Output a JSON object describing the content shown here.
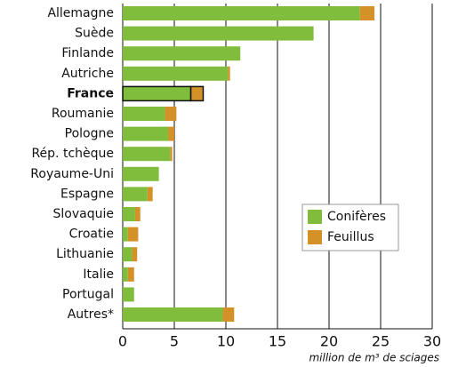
{
  "chart_data": {
    "type": "stacked-bar-horizontal",
    "categories": [
      "Allemagne",
      "Suède",
      "Finlande",
      "Autriche",
      "France",
      "Roumanie",
      "Pologne",
      "Rép. tchèque",
      "Royaume-Uni",
      "Espagne",
      "Slovaquie",
      "Croatie",
      "Lithuanie",
      "Italie",
      "Portugal",
      "Autres*"
    ],
    "series": [
      {
        "name": "Conifères",
        "color": "#80bd3c",
        "values": [
          23.0,
          18.5,
          11.4,
          10.2,
          6.6,
          4.1,
          4.4,
          4.6,
          3.5,
          2.4,
          1.2,
          0.5,
          0.9,
          0.5,
          1.1,
          9.7
        ]
      },
      {
        "name": "Feuillus",
        "color": "#d39128",
        "values": [
          1.4,
          0,
          0,
          0.2,
          1.2,
          1.1,
          0.6,
          0.2,
          0,
          0.5,
          0.5,
          1.0,
          0.5,
          0.6,
          0,
          1.1
        ]
      }
    ],
    "highlight": 4,
    "xlim": [
      0,
      30
    ],
    "xticks": [
      0,
      5,
      10,
      15,
      20,
      25,
      30
    ],
    "grid": true,
    "xlabel": "million de m³ de sciages",
    "legend": "lower right"
  }
}
